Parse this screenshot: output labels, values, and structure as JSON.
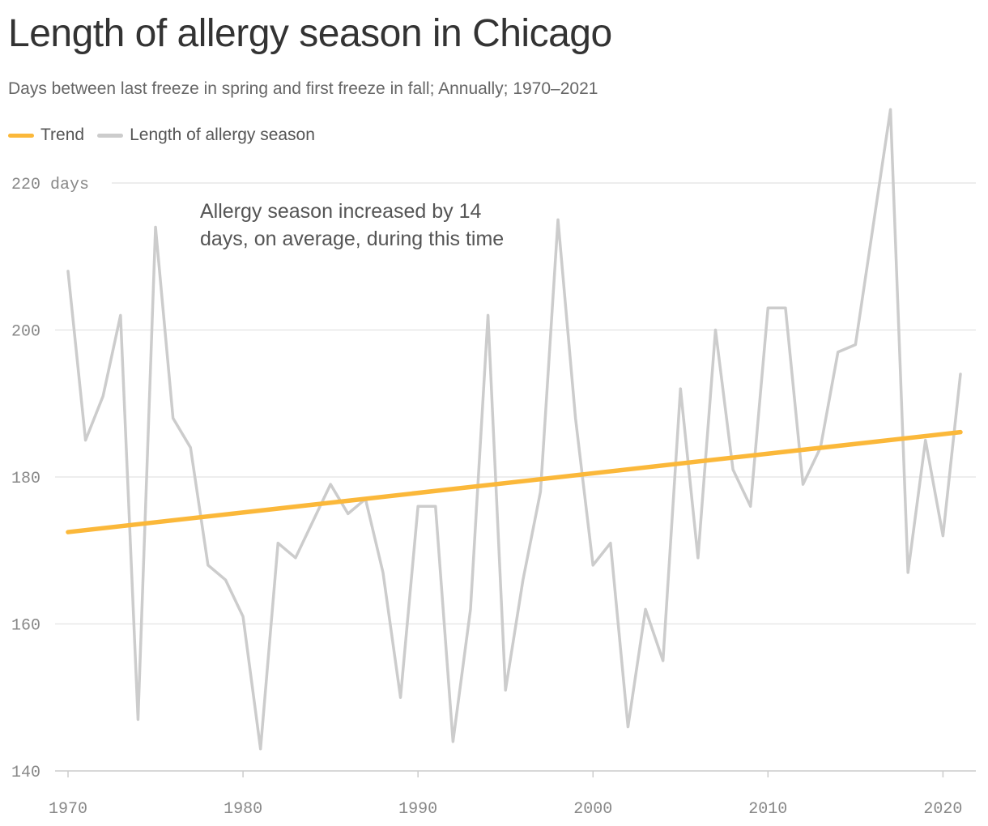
{
  "title": "Length of allergy season in Chicago",
  "subtitle": "Days between last freeze in spring and first freeze in fall; Annually; 1970–2021",
  "legend": [
    {
      "label": "Trend",
      "color": "#fbb83a"
    },
    {
      "label": "Length of allergy season",
      "color": "#cccccc"
    }
  ],
  "annotation": "Allergy season increased by 14 days, on average, during this time",
  "chart_data": {
    "type": "line",
    "title": "Length of allergy season in Chicago",
    "subtitle": "Days between last freeze in spring and first freeze in fall; Annually; 1970–2021",
    "xlabel": "",
    "ylabel": "",
    "xlim": [
      1970,
      2021
    ],
    "ylim": [
      140,
      220
    ],
    "y_unit_suffix": " days",
    "y_ticks": [
      140,
      160,
      180,
      200,
      220
    ],
    "x_ticks": [
      1970,
      1980,
      1990,
      2000,
      2010,
      2020
    ],
    "grid": true,
    "legend_position": "top-left",
    "x": [
      1970,
      1971,
      1972,
      1973,
      1974,
      1975,
      1976,
      1977,
      1978,
      1979,
      1980,
      1981,
      1982,
      1983,
      1984,
      1985,
      1986,
      1987,
      1988,
      1989,
      1990,
      1991,
      1992,
      1993,
      1994,
      1995,
      1996,
      1997,
      1998,
      1999,
      2000,
      2001,
      2002,
      2003,
      2004,
      2005,
      2006,
      2007,
      2008,
      2009,
      2010,
      2011,
      2012,
      2013,
      2014,
      2015,
      2016,
      2017,
      2018,
      2019,
      2020,
      2021
    ],
    "series": [
      {
        "name": "Length of allergy season",
        "color": "#cccccc",
        "values": [
          208,
          185,
          191,
          202,
          147,
          214,
          188,
          184,
          168,
          166,
          161,
          143,
          171,
          169,
          174,
          179,
          175,
          177,
          167,
          150,
          176,
          176,
          144,
          162,
          202,
          151,
          166,
          178,
          215,
          188,
          168,
          171,
          146,
          162,
          155,
          192,
          169,
          200,
          181,
          176,
          203,
          203,
          179,
          184,
          197,
          198,
          214,
          230,
          167,
          185,
          172,
          194
        ]
      },
      {
        "name": "Trend",
        "color": "#fbb83a",
        "x": [
          1970,
          2021
        ],
        "values": [
          172.5,
          186.1
        ]
      }
    ]
  }
}
